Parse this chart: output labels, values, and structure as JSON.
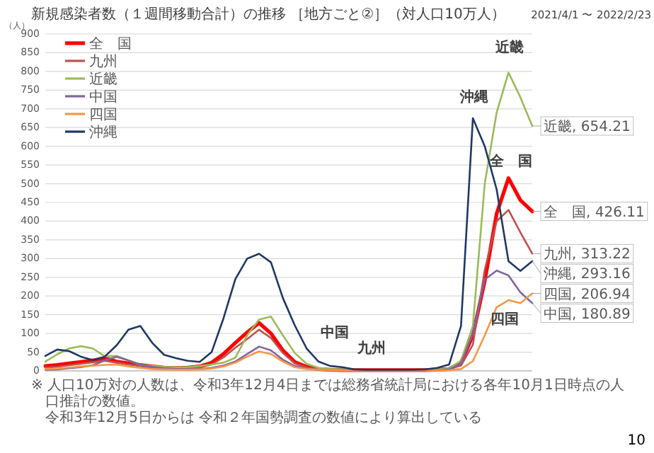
{
  "chart_data": {
    "type": "line",
    "title": "新規感染者数（１週間移動合計）の推移 ［地方ごと②］（対人口10万人）",
    "subtitle": "2021/4/1 〜 2022/2/23",
    "ylabel": "（人）",
    "categories": [
      null,
      null,
      null,
      null,
      null,
      null,
      null,
      null,
      null,
      null,
      null,
      null,
      null,
      null,
      null,
      null,
      null,
      null,
      null,
      null,
      null,
      null,
      null,
      null,
      null,
      null,
      null,
      null,
      null,
      null,
      null,
      null,
      null,
      null,
      null,
      null,
      null,
      null,
      null,
      null,
      null,
      null
    ],
    "series": [
      {
        "name": "全　国",
        "color": "#ff0000",
        "values": [
          13,
          16,
          20,
          24,
          28,
          34,
          25,
          20,
          16,
          12,
          9,
          8,
          9,
          12,
          22,
          45,
          75,
          103,
          128,
          100,
          55,
          24,
          11,
          5,
          3,
          2,
          2,
          2,
          2,
          2,
          2,
          2,
          2,
          3,
          5,
          22,
          95,
          240,
          420,
          515,
          456,
          426.11
        ],
        "value_labels": [
          null,
          null,
          null,
          null,
          null,
          null,
          null,
          null,
          null,
          null,
          null,
          null,
          null,
          null,
          null,
          null,
          null,
          null,
          null,
          null,
          null,
          null,
          null,
          null,
          null,
          null,
          null,
          null,
          null,
          null,
          null,
          null,
          null,
          null,
          null,
          null,
          null,
          null,
          null,
          null,
          null,
          "全　国, 426.11"
        ]
      },
      {
        "name": "九州",
        "color": "#c0504d",
        "values": [
          9,
          11,
          15,
          19,
          23,
          27,
          22,
          17,
          13,
          9,
          7,
          6,
          6,
          9,
          17,
          36,
          62,
          85,
          110,
          88,
          48,
          20,
          9,
          4,
          3,
          2,
          2,
          2,
          2,
          2,
          2,
          2,
          2,
          3,
          5,
          14,
          70,
          270,
          400,
          430,
          370,
          313.22
        ],
        "value_labels": [
          null,
          null,
          null,
          null,
          null,
          null,
          null,
          null,
          null,
          null,
          null,
          null,
          null,
          null,
          null,
          null,
          null,
          null,
          null,
          null,
          null,
          null,
          null,
          null,
          null,
          null,
          null,
          null,
          null,
          null,
          null,
          null,
          null,
          null,
          null,
          null,
          null,
          null,
          null,
          null,
          null,
          "九州, 313.22"
        ]
      },
      {
        "name": "近畿",
        "color": "#9bbb59",
        "values": [
          25,
          44,
          60,
          66,
          60,
          39,
          40,
          28,
          17,
          13,
          11,
          10,
          10,
          13,
          17,
          22,
          35,
          95,
          137,
          145,
          95,
          48,
          19,
          8,
          5,
          4,
          3,
          3,
          2,
          2,
          2,
          2,
          3,
          4,
          7,
          27,
          120,
          500,
          690,
          797,
          731,
          654.21
        ],
        "value_labels": [
          null,
          null,
          null,
          null,
          null,
          null,
          null,
          null,
          null,
          null,
          null,
          null,
          null,
          null,
          null,
          null,
          null,
          null,
          null,
          null,
          null,
          null,
          null,
          null,
          null,
          null,
          null,
          null,
          null,
          null,
          null,
          null,
          null,
          null,
          null,
          null,
          null,
          null,
          null,
          null,
          null,
          "近畿, 654.21"
        ]
      },
      {
        "name": "中国",
        "color": "#8064a2",
        "values": [
          3,
          4,
          7,
          10,
          15,
          28,
          38,
          28,
          17,
          11,
          7,
          5,
          4,
          5,
          8,
          14,
          25,
          45,
          65,
          55,
          30,
          13,
          6,
          3,
          2,
          2,
          1,
          1,
          1,
          1,
          1,
          1,
          2,
          2,
          4,
          20,
          100,
          244,
          268,
          255,
          210,
          180.89
        ],
        "value_labels": [
          null,
          null,
          null,
          null,
          null,
          null,
          null,
          null,
          null,
          null,
          null,
          null,
          null,
          null,
          null,
          null,
          null,
          null,
          null,
          null,
          null,
          null,
          null,
          null,
          null,
          null,
          null,
          null,
          null,
          null,
          null,
          null,
          null,
          null,
          null,
          null,
          null,
          null,
          null,
          null,
          null,
          "中国, 180.89"
        ]
      },
      {
        "name": "四国",
        "color": "#f79646",
        "values": [
          5,
          6,
          9,
          12,
          14,
          16,
          17,
          12,
          8,
          5,
          4,
          3,
          3,
          4,
          6,
          12,
          22,
          38,
          52,
          45,
          25,
          10,
          5,
          3,
          2,
          1,
          1,
          1,
          1,
          1,
          1,
          1,
          1,
          1,
          2,
          5,
          26,
          95,
          170,
          189,
          181,
          206.94
        ],
        "value_labels": [
          null,
          null,
          null,
          null,
          null,
          null,
          null,
          null,
          null,
          null,
          null,
          null,
          null,
          null,
          null,
          null,
          null,
          null,
          null,
          null,
          null,
          null,
          null,
          null,
          null,
          null,
          null,
          null,
          null,
          null,
          null,
          null,
          null,
          null,
          null,
          null,
          null,
          null,
          null,
          null,
          null,
          "四国, 206.94"
        ]
      },
      {
        "name": "沖縄",
        "color": "#1f3864",
        "values": [
          40,
          57,
          53,
          38,
          29,
          38,
          68,
          110,
          120,
          75,
          43,
          34,
          27,
          24,
          50,
          140,
          245,
          300,
          313,
          290,
          195,
          122,
          60,
          25,
          13,
          10,
          4,
          3,
          3,
          3,
          3,
          3,
          4,
          8,
          17,
          120,
          675,
          600,
          485,
          293,
          267,
          293.16
        ],
        "value_labels": [
          null,
          null,
          null,
          null,
          null,
          null,
          null,
          null,
          null,
          null,
          null,
          null,
          null,
          null,
          null,
          null,
          null,
          null,
          null,
          null,
          null,
          null,
          null,
          null,
          null,
          null,
          null,
          null,
          null,
          null,
          null,
          null,
          null,
          null,
          null,
          null,
          null,
          null,
          null,
          null,
          null,
          "沖縄, 293.16"
        ]
      }
    ],
    "ylim": [
      0,
      900
    ],
    "yticks": [
      0,
      50,
      100,
      150,
      200,
      250,
      300,
      350,
      400,
      450,
      500,
      550,
      600,
      650,
      700,
      750,
      800,
      850,
      900
    ],
    "grid": "y",
    "legend": "top left",
    "tick_labels": "y",
    "marker": "none",
    "line_style": "solid",
    "annotations": [
      "近畿",
      "沖縄",
      "全　国",
      "中国",
      "九州",
      "四国",
      "※ 人口10万対の人数は、令和3年12月4日までは総務省統計局における各年10月1日時点の人口推計の数値。",
      "令和3年12月5日からは 令和２年国勢調査の数値により算出している",
      "10"
    ]
  }
}
